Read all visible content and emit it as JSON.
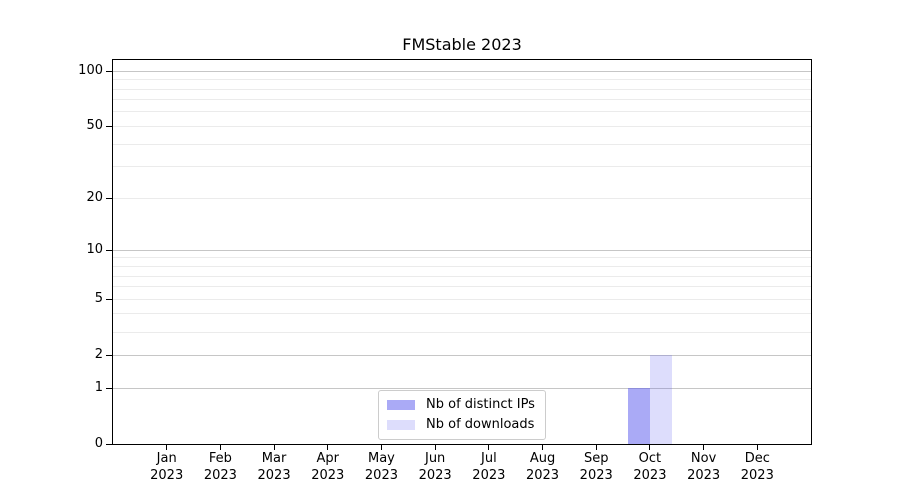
{
  "chart_data": {
    "type": "bar",
    "title": "FMStable 2023",
    "categories": [
      "Jan",
      "Feb",
      "Mar",
      "Apr",
      "May",
      "Jun",
      "Jul",
      "Aug",
      "Sep",
      "Oct",
      "Nov",
      "Dec"
    ],
    "year": "2023",
    "series": [
      {
        "name": "Nb of distinct IPs",
        "color": "rgba(85,85,238,0.5)",
        "values": [
          0,
          0,
          0,
          0,
          0,
          0,
          0,
          0,
          0,
          1,
          0,
          0
        ]
      },
      {
        "name": "Nb of downloads",
        "color": "rgba(85,85,238,0.2)",
        "values": [
          0,
          0,
          0,
          0,
          0,
          0,
          0,
          0,
          0,
          2,
          0,
          0
        ]
      }
    ],
    "xlabel": "",
    "ylabel": "",
    "yscale": "log1p",
    "ylim": [
      0,
      115
    ],
    "yticks": [
      0,
      1,
      2,
      5,
      10,
      20,
      50,
      100
    ],
    "ygrid_strong": [
      1,
      2,
      10,
      100
    ],
    "ygrid_light": [
      3,
      4,
      5,
      6,
      7,
      8,
      9,
      20,
      30,
      40,
      50,
      60,
      70,
      80,
      90
    ],
    "grid": true,
    "legend_position": "lower center",
    "colors": {
      "grid_strong": "#c6c6c6",
      "grid_light": "#ebebeb",
      "spine": "#000000",
      "background": "#ffffff"
    }
  }
}
